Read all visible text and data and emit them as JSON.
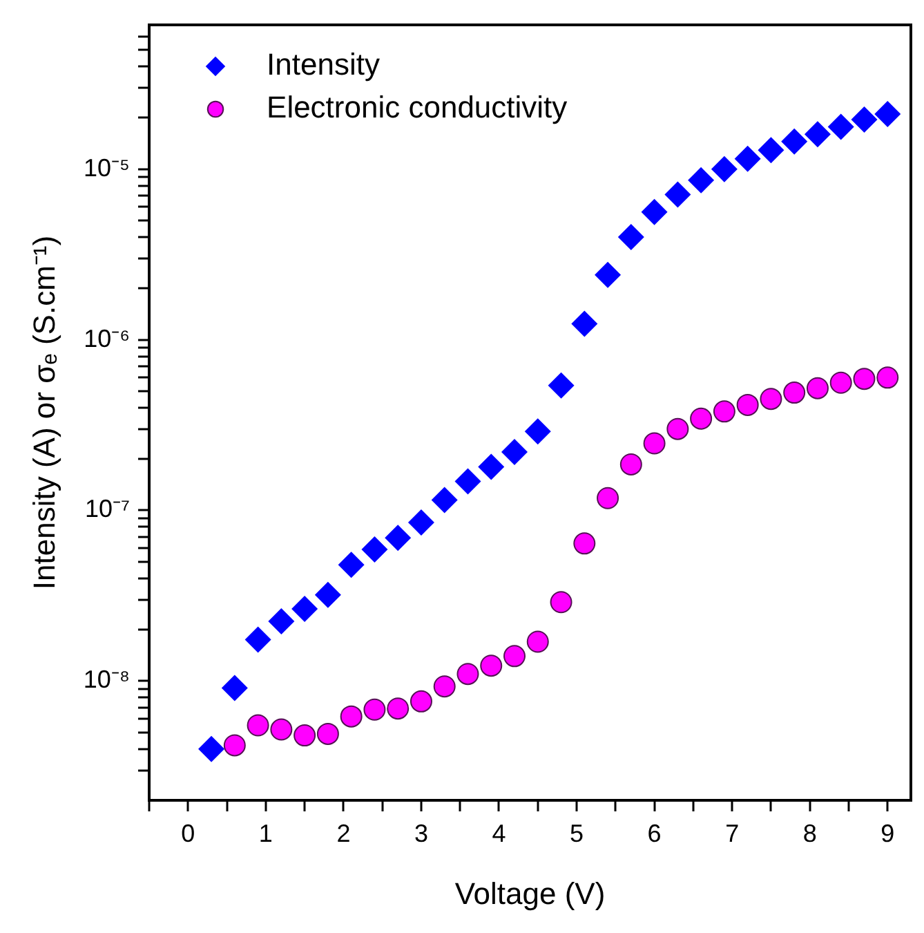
{
  "chart_data": {
    "type": "scatter",
    "xlabel": "Voltage (V)",
    "ylabel": "Intensity (A) or σₑ (S.cm⁻¹)",
    "log": "y",
    "grid": false,
    "legend": "top left",
    "xlim": [
      -0.5,
      9.3
    ],
    "xticks": [
      0,
      1,
      2,
      3,
      4,
      5,
      6,
      7,
      8,
      9,
      {
        "value": -0.5,
        "label": null
      },
      {
        "value": 0.5,
        "label": null
      },
      {
        "value": 1.5,
        "label": null
      },
      {
        "value": 2.5,
        "label": null
      },
      {
        "value": 3.5,
        "label": null
      },
      {
        "value": 4.5,
        "label": null
      },
      {
        "value": 5.5,
        "label": null
      },
      {
        "value": 6.5,
        "label": null
      },
      {
        "value": 7.5,
        "label": null
      },
      {
        "value": 8.5,
        "label": null
      }
    ],
    "ylim": [
      2e-09,
      7e-05
    ],
    "yticks": [
      {
        "value": 1e-08,
        "label": "10⁻⁸"
      },
      {
        "value": 1e-07,
        "label": "10⁻⁷"
      },
      {
        "value": 1e-06,
        "label": "10⁻⁶"
      },
      {
        "value": 1e-05,
        "label": "10⁻⁵"
      },
      {
        "value": 3e-09,
        "label": null
      },
      {
        "value": 4e-09,
        "label": null
      },
      {
        "value": 5e-09,
        "label": null
      },
      {
        "value": 6e-09,
        "label": null
      },
      {
        "value": 7e-09,
        "label": null
      },
      {
        "value": 8e-09,
        "label": null
      },
      {
        "value": 9e-09,
        "label": null
      },
      {
        "value": 2e-08,
        "label": null
      },
      {
        "value": 3e-08,
        "label": null
      },
      {
        "value": 4e-08,
        "label": null
      },
      {
        "value": 5e-08,
        "label": null
      },
      {
        "value": 6e-08,
        "label": null
      },
      {
        "value": 7e-08,
        "label": null
      },
      {
        "value": 8e-08,
        "label": null
      },
      {
        "value": 9e-08,
        "label": null
      },
      {
        "value": 2e-07,
        "label": null
      },
      {
        "value": 3e-07,
        "label": null
      },
      {
        "value": 4e-07,
        "label": null
      },
      {
        "value": 5e-07,
        "label": null
      },
      {
        "value": 6e-07,
        "label": null
      },
      {
        "value": 7e-07,
        "label": null
      },
      {
        "value": 8e-07,
        "label": null
      },
      {
        "value": 9e-07,
        "label": null
      },
      {
        "value": 2e-06,
        "label": null
      },
      {
        "value": 3e-06,
        "label": null
      },
      {
        "value": 4e-06,
        "label": null
      },
      {
        "value": 5e-06,
        "label": null
      },
      {
        "value": 6e-06,
        "label": null
      },
      {
        "value": 7e-06,
        "label": null
      },
      {
        "value": 8e-06,
        "label": null
      },
      {
        "value": 9e-06,
        "label": null
      },
      {
        "value": 2e-05,
        "label": null
      },
      {
        "value": 3e-05,
        "label": null
      },
      {
        "value": 4e-05,
        "label": null
      },
      {
        "value": 5e-05,
        "label": null
      },
      {
        "value": 6e-05,
        "label": null
      }
    ],
    "series": [
      {
        "name": "Intensity",
        "color": "#0000ff",
        "marker": "diamond",
        "x": [
          0.3,
          0.6,
          0.9,
          1.2,
          1.5,
          1.8,
          2.1,
          2.4,
          2.7,
          3.0,
          3.3,
          3.6,
          3.9,
          4.2,
          4.5,
          4.8,
          5.1,
          5.4,
          5.7,
          6.0,
          6.3,
          6.6,
          6.9,
          7.2,
          7.5,
          7.8,
          8.1,
          8.4,
          8.7,
          9.0
        ],
        "values": [
          4e-09,
          9.1e-09,
          1.75e-08,
          2.24e-08,
          2.65e-08,
          3.2e-08,
          4.8e-08,
          5.9e-08,
          6.9e-08,
          8.5e-08,
          1.15e-07,
          1.48e-07,
          1.8e-07,
          2.2e-07,
          2.9e-07,
          5.4e-07,
          1.24e-06,
          2.4e-06,
          4e-06,
          5.6e-06,
          7.1e-06,
          8.6e-06,
          1e-05,
          1.15e-05,
          1.29e-05,
          1.45e-05,
          1.6e-05,
          1.77e-05,
          1.95e-05,
          2.1e-05
        ]
      },
      {
        "name": "Electronic conductivity",
        "color": "#ff00ff",
        "marker": "circle",
        "x": [
          0.6,
          0.9,
          1.2,
          1.5,
          1.8,
          2.1,
          2.4,
          2.7,
          3.0,
          3.3,
          3.6,
          3.9,
          4.2,
          4.5,
          4.8,
          5.1,
          5.4,
          5.7,
          6.0,
          6.3,
          6.6,
          6.9,
          7.2,
          7.5,
          7.8,
          8.1,
          8.4,
          8.7,
          9.0
        ],
        "values": [
          4.2e-09,
          5.5e-09,
          5.2e-09,
          4.8e-09,
          4.9e-09,
          6.2e-09,
          6.8e-09,
          6.9e-09,
          7.6e-09,
          9.3e-09,
          1.1e-08,
          1.23e-08,
          1.4e-08,
          1.7e-08,
          2.9e-08,
          6.4e-08,
          1.18e-07,
          1.86e-07,
          2.47e-07,
          3e-07,
          3.45e-07,
          3.8e-07,
          4.15e-07,
          4.5e-07,
          4.9e-07,
          5.2e-07,
          5.6e-07,
          5.9e-07,
          6e-07
        ]
      }
    ]
  }
}
